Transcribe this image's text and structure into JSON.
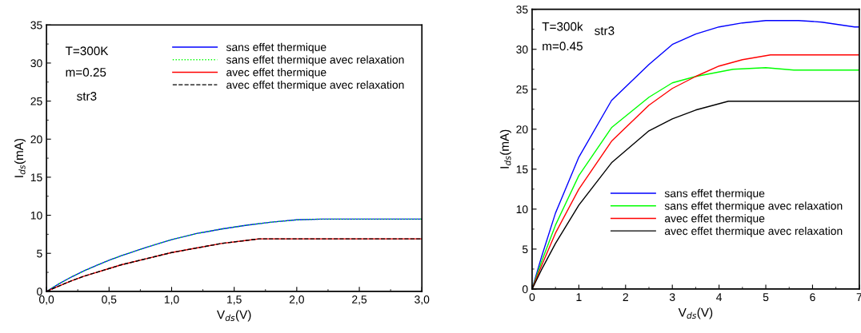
{
  "chart_data": [
    {
      "type": "line",
      "xlabel": "V$_{ds}$(V)",
      "ylabel": "I$_{ds}$(mA)",
      "xlim": [
        0,
        3
      ],
      "ylim": [
        0,
        35
      ],
      "xticks": [
        {
          "value": 0,
          "label": "0,0"
        },
        {
          "value": 0.5,
          "label": "0,5"
        },
        {
          "value": 1,
          "label": "1,0"
        },
        {
          "value": 1.5,
          "label": "1,5"
        },
        {
          "value": 2,
          "label": "2,0"
        },
        {
          "value": 2.5,
          "label": "2,5"
        },
        {
          "value": 3,
          "label": "3,0"
        }
      ],
      "yticks": [
        0,
        5,
        10,
        15,
        20,
        25,
        30,
        35
      ],
      "grid": false,
      "legend": "top right",
      "annotations": [
        "T=300K",
        "m=0.25",
        "str3"
      ],
      "series": [
        {
          "name": "sans effet thermique",
          "color": "#0000ff",
          "line_style": "solid",
          "x": [
            0,
            0.1,
            0.2,
            0.3,
            0.4,
            0.5,
            0.6,
            0.8,
            1.0,
            1.2,
            1.4,
            1.6,
            1.8,
            2.0,
            2.2,
            2.5,
            3.0
          ],
          "values": [
            0,
            1.0,
            1.9,
            2.7,
            3.4,
            4.1,
            4.7,
            5.8,
            6.8,
            7.6,
            8.2,
            8.7,
            9.1,
            9.4,
            9.5,
            9.5,
            9.5
          ]
        },
        {
          "name": "sans effet thermique avec relaxation",
          "color": "#00ff00",
          "line_style": "dotted",
          "x": [
            0,
            0.1,
            0.2,
            0.3,
            0.4,
            0.5,
            0.6,
            0.8,
            1.0,
            1.2,
            1.4,
            1.6,
            1.8,
            2.0,
            2.2,
            2.5,
            3.0
          ],
          "values": [
            0,
            1.0,
            1.9,
            2.7,
            3.4,
            4.1,
            4.7,
            5.8,
            6.8,
            7.6,
            8.2,
            8.7,
            9.1,
            9.4,
            9.5,
            9.5,
            9.5
          ]
        },
        {
          "name": "avec effet thermique",
          "color": "#ff0000",
          "line_style": "solid",
          "x": [
            0,
            0.1,
            0.2,
            0.3,
            0.4,
            0.5,
            0.6,
            0.8,
            1.0,
            1.2,
            1.4,
            1.6,
            1.7,
            2.0,
            2.5,
            3.0
          ],
          "values": [
            0,
            0.7,
            1.4,
            2.0,
            2.5,
            3.0,
            3.5,
            4.3,
            5.1,
            5.7,
            6.3,
            6.7,
            6.9,
            6.9,
            6.9,
            6.9
          ]
        },
        {
          "name": "avec effet thermique avec relaxation",
          "color": "#000000",
          "line_style": "dashed",
          "x": [
            0,
            0.1,
            0.2,
            0.3,
            0.4,
            0.5,
            0.6,
            0.8,
            1.0,
            1.2,
            1.4,
            1.6,
            1.7,
            3.0
          ],
          "values": [
            0,
            0.7,
            1.4,
            2.0,
            2.5,
            3.0,
            3.5,
            4.3,
            5.1,
            5.7,
            6.3,
            6.7,
            6.9,
            6.9
          ]
        }
      ]
    },
    {
      "type": "line",
      "xlabel": "V$_{ds}$(V)",
      "ylabel": "I$_{ds}$(mA)",
      "xlim": [
        0,
        7
      ],
      "ylim": [
        0,
        35
      ],
      "xticks": [
        0,
        1,
        2,
        3,
        4,
        5,
        6,
        7
      ],
      "yticks": [
        0,
        5,
        10,
        15,
        20,
        25,
        30,
        35
      ],
      "grid": false,
      "legend": "bottom right",
      "annotations": [
        "T=300k",
        "str3",
        "m=0.45"
      ],
      "series": [
        {
          "name": "sans effet thermique",
          "color": "#0000ff",
          "line_style": "solid",
          "x": [
            0,
            0.2,
            0.5,
            1,
            1.7,
            2.5,
            3,
            3.5,
            4,
            4.5,
            5,
            5.7,
            6.2,
            6.9,
            7
          ],
          "values": [
            0,
            4,
            9.5,
            16.5,
            23.6,
            28.1,
            30.6,
            31.9,
            32.8,
            33.3,
            33.6,
            33.6,
            33.4,
            32.8,
            32.8
          ]
        },
        {
          "name": "sans effet thermique avec relaxation",
          "color": "#00ff00",
          "line_style": "solid",
          "x": [
            0,
            0.2,
            0.5,
            1,
            1.7,
            2.5,
            3,
            3.5,
            4.3,
            5,
            5.6,
            7
          ],
          "values": [
            0,
            3.4,
            8,
            14.2,
            20.2,
            24,
            25.8,
            26.6,
            27.5,
            27.7,
            27.4,
            27.4
          ]
        },
        {
          "name": "avec effet thermique",
          "color": "#ff0000",
          "line_style": "solid",
          "x": [
            0,
            0.2,
            0.5,
            1,
            1.7,
            2.5,
            3,
            3.5,
            4,
            4.5,
            5.1,
            7
          ],
          "values": [
            0,
            2.9,
            7,
            12.5,
            18.5,
            23,
            25.1,
            26.6,
            27.9,
            28.7,
            29.3,
            29.3
          ]
        },
        {
          "name": "avec effet thermique avec relaxation",
          "color": "#000000",
          "line_style": "solid",
          "x": [
            0,
            0.2,
            0.5,
            1,
            1.7,
            2.5,
            3,
            3.5,
            4.2,
            7
          ],
          "values": [
            0,
            2.4,
            5.7,
            10.5,
            15.8,
            19.8,
            21.3,
            22.4,
            23.5,
            23.5
          ]
        }
      ]
    }
  ]
}
